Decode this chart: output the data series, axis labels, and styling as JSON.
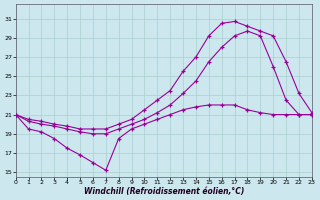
{
  "background_color": "#cce8ee",
  "grid_color": "#aacfcc",
  "line_color": "#990099",
  "xlabel": "Windchill (Refroidissement éolien,°C)",
  "xlim": [
    0,
    23
  ],
  "ylim": [
    14.5,
    32.5
  ],
  "xticks": [
    0,
    1,
    2,
    3,
    4,
    5,
    6,
    7,
    8,
    9,
    10,
    11,
    12,
    13,
    14,
    15,
    16,
    17,
    18,
    19,
    20,
    21,
    22,
    23
  ],
  "yticks": [
    15,
    17,
    19,
    21,
    23,
    25,
    27,
    29,
    31
  ],
  "curve_top_x": [
    0,
    1,
    2,
    3,
    4,
    5,
    6,
    7,
    8,
    9,
    10,
    11,
    12,
    13,
    14,
    15,
    16,
    17,
    18,
    19,
    20,
    21,
    22,
    23
  ],
  "curve_top_y": [
    21,
    20.5,
    20.3,
    20.0,
    19.8,
    19.5,
    19.5,
    19.5,
    20.0,
    20.5,
    21.5,
    22.5,
    23.5,
    25.5,
    27.0,
    29.2,
    30.5,
    30.7,
    30.2,
    29.7,
    29.2,
    26.5,
    23.2,
    21.2
  ],
  "curve_mid_x": [
    0,
    1,
    2,
    3,
    4,
    5,
    6,
    7,
    8,
    9,
    10,
    11,
    12,
    13,
    14,
    15,
    16,
    17,
    18,
    19,
    20,
    21,
    22,
    23
  ],
  "curve_mid_y": [
    21,
    20.3,
    20.0,
    19.8,
    19.5,
    19.2,
    19.0,
    19.0,
    19.5,
    20.0,
    20.5,
    21.2,
    22.0,
    23.2,
    24.5,
    26.5,
    28.0,
    29.2,
    29.7,
    29.2,
    26.0,
    22.5,
    21.0,
    21.0
  ],
  "curve_bot_x": [
    0,
    1,
    2,
    3,
    4,
    5,
    6,
    7,
    8,
    9,
    10,
    11,
    12,
    13,
    14,
    15,
    16,
    17,
    18,
    19,
    20,
    21,
    22,
    23
  ],
  "curve_bot_y": [
    21,
    19.5,
    19.2,
    18.5,
    17.5,
    16.8,
    16.0,
    15.2,
    18.5,
    19.5,
    20.0,
    20.5,
    21.0,
    21.5,
    21.8,
    22.0,
    22.0,
    22.0,
    21.5,
    21.2,
    21.0,
    21.0,
    21.0,
    21.0
  ]
}
